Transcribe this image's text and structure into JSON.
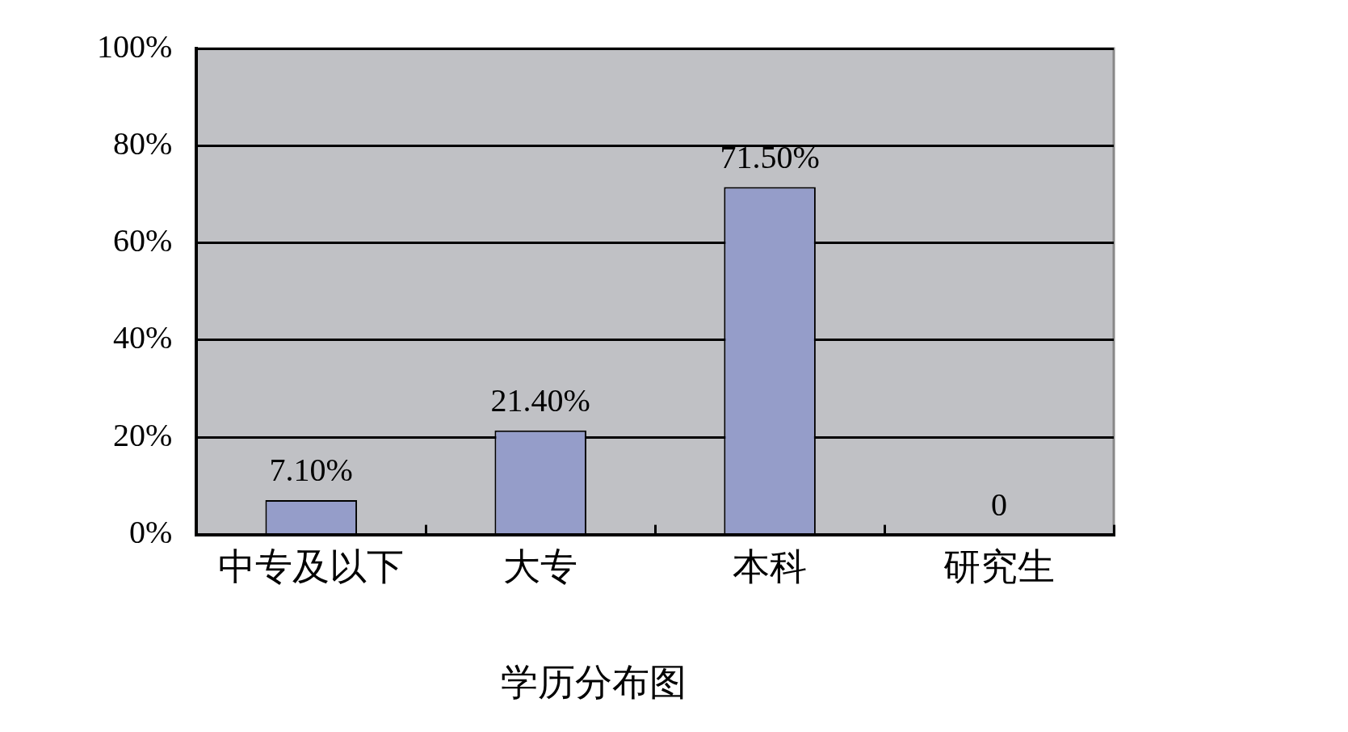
{
  "chart_data": {
    "type": "bar",
    "title": "学历分布图",
    "categories": [
      "中专及以下",
      "大专",
      "本科",
      "研究生"
    ],
    "values": [
      7.1,
      21.4,
      71.5,
      0
    ],
    "value_labels": [
      "7.10%",
      "21.40%",
      "71.50%",
      "0"
    ],
    "color": "#959dc9",
    "ylim": [
      0,
      100
    ],
    "yticks": [
      {
        "value": 0,
        "label": "0%"
      },
      {
        "value": 20,
        "label": "20%"
      },
      {
        "value": 40,
        "label": "40%"
      },
      {
        "value": 60,
        "label": "60%"
      },
      {
        "value": 80,
        "label": "80%"
      },
      {
        "value": 100,
        "label": "100%"
      }
    ],
    "grid": "y",
    "legend": false
  }
}
